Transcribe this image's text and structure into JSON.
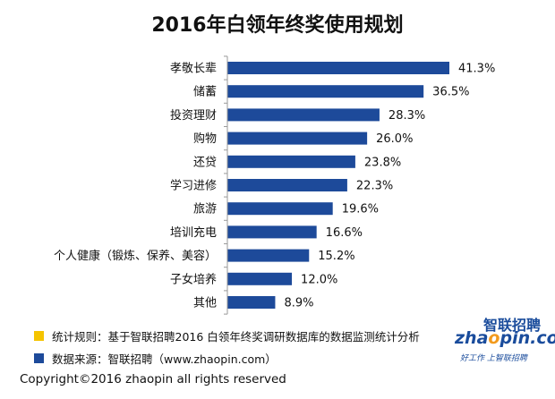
{
  "colors": {
    "bar": "#1d4a9a",
    "legend_rule": "#f5c400",
    "legend_source": "#1d4a9a",
    "brand_blue": "#1a4c9c",
    "brand_orange": "#f29a1d"
  },
  "chart_data": {
    "type": "bar",
    "orientation": "horizontal",
    "title": "2016年白领年终奖使用规划",
    "categories": [
      "孝敬长辈",
      "储蓄",
      "投资理财",
      "购物",
      "还贷",
      "学习进修",
      "旅游",
      "培训充电",
      "个人健康（锻炼、保养、美容）",
      "子女培养",
      "其他"
    ],
    "values": [
      41.3,
      36.5,
      28.3,
      26.0,
      23.8,
      22.3,
      19.6,
      16.6,
      15.2,
      12.0,
      8.9
    ],
    "value_labels": [
      "41.3%",
      "36.5%",
      "28.3%",
      "26.0%",
      "23.8%",
      "22.3%",
      "19.6%",
      "16.6%",
      "15.2%",
      "12.0%",
      "8.9%"
    ],
    "unit": "%",
    "xlim": [
      0,
      41.3
    ],
    "grid": false,
    "legend": "none"
  },
  "legend": {
    "rule_text": "统计规则：基于智联招聘2016 白领年终奖调研数据库的数据监测统计分析",
    "source_text": "数据来源：智联招聘（www.zhaopin.com）"
  },
  "brand": {
    "name_cn": "智联招聘",
    "name_en_before": "zha",
    "name_en_o": "o",
    "name_en_after": "pin.com",
    "slogan": "好工作 上智联招聘"
  },
  "footer": {
    "copyright": "Copyright©2016 zhaopin all rights reserved"
  }
}
